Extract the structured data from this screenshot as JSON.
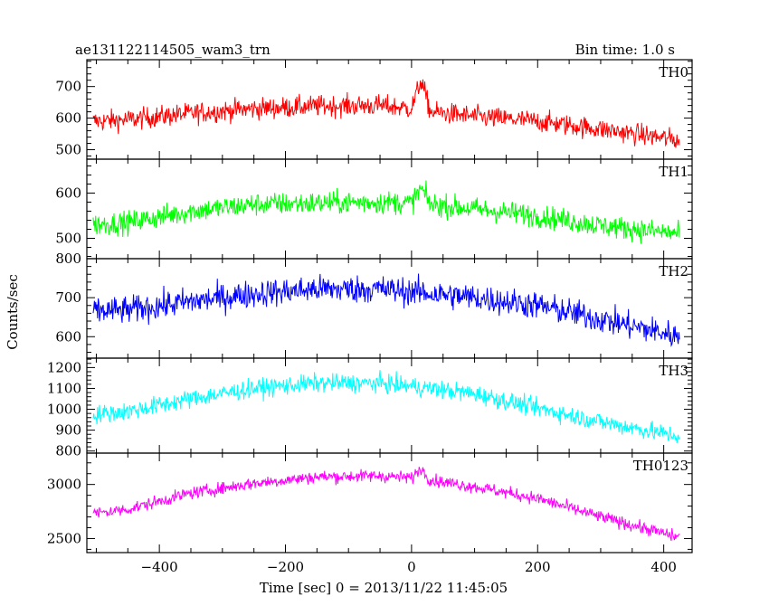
{
  "chart_data": {
    "type": "line",
    "title": "ae131122114505_wam3_trn",
    "bin_time_label": "Bin time: 1.0 s",
    "xlabel": "Time [sec] 0 = 2013/11/22 11:45:05",
    "ylabel": "Counts/sec",
    "xlim": [
      -515,
      445
    ],
    "x_ticks": [
      -400,
      -200,
      0,
      200,
      400
    ],
    "x_tick_labels": [
      "−400",
      "−200",
      "0",
      "200",
      "400"
    ],
    "x_data_range": [
      -505,
      425
    ],
    "series": [
      {
        "name": "TH0",
        "color": "#ff0000",
        "ylim": [
          470,
          785
        ],
        "y_ticks": [
          500,
          600,
          700
        ],
        "y_tick_labels": [
          "500",
          "600",
          "700"
        ],
        "trend": [
          [
            -505,
            590
          ],
          [
            -450,
            595
          ],
          [
            -350,
            615
          ],
          [
            -250,
            630
          ],
          [
            -150,
            638
          ],
          [
            -50,
            640
          ],
          [
            0,
            630
          ],
          [
            15,
            720
          ],
          [
            30,
            620
          ],
          [
            100,
            605
          ],
          [
            200,
            590
          ],
          [
            300,
            565
          ],
          [
            425,
            530
          ]
        ],
        "noise": 32
      },
      {
        "name": "TH1",
        "color": "#00ff00",
        "ylim": [
          455,
          675
        ],
        "y_ticks": [
          500,
          600
        ],
        "y_tick_labels": [
          "500",
          "600"
        ],
        "trend": [
          [
            -505,
            530
          ],
          [
            -450,
            535
          ],
          [
            -350,
            560
          ],
          [
            -250,
            575
          ],
          [
            -150,
            578
          ],
          [
            -50,
            580
          ],
          [
            0,
            578
          ],
          [
            15,
            610
          ],
          [
            30,
            575
          ],
          [
            100,
            565
          ],
          [
            200,
            550
          ],
          [
            300,
            528
          ],
          [
            425,
            510
          ]
        ],
        "noise": 24
      },
      {
        "name": "TH2",
        "color": "#0000ff",
        "ylim": [
          545,
          800
        ],
        "y_ticks": [
          600,
          700,
          800
        ],
        "y_tick_labels": [
          "600",
          "700",
          "800"
        ],
        "trend": [
          [
            -505,
            665
          ],
          [
            -450,
            668
          ],
          [
            -350,
            690
          ],
          [
            -250,
            710
          ],
          [
            -150,
            722
          ],
          [
            -50,
            722
          ],
          [
            0,
            715
          ],
          [
            100,
            700
          ],
          [
            200,
            680
          ],
          [
            300,
            645
          ],
          [
            425,
            600
          ]
        ],
        "noise": 34
      },
      {
        "name": "TH3",
        "color": "#00ffff",
        "ylim": [
          790,
          1245
        ],
        "y_ticks": [
          800,
          900,
          1000,
          1100,
          1200
        ],
        "y_tick_labels": [
          "800",
          "900",
          "1000",
          "1100",
          "1200"
        ],
        "trend": [
          [
            -505,
            975
          ],
          [
            -450,
            990
          ],
          [
            -350,
            1050
          ],
          [
            -250,
            1100
          ],
          [
            -150,
            1125
          ],
          [
            -50,
            1125
          ],
          [
            0,
            1110
          ],
          [
            100,
            1075
          ],
          [
            200,
            1005
          ],
          [
            300,
            940
          ],
          [
            425,
            870
          ]
        ],
        "noise": 42
      },
      {
        "name": "TH0123",
        "color": "#ff00ff",
        "ylim": [
          2370,
          3290
        ],
        "y_ticks": [
          2500,
          3000
        ],
        "y_tick_labels": [
          "2500",
          "3000"
        ],
        "trend": [
          [
            -505,
            2730
          ],
          [
            -450,
            2770
          ],
          [
            -350,
            2920
          ],
          [
            -250,
            3010
          ],
          [
            -150,
            3070
          ],
          [
            -50,
            3080
          ],
          [
            0,
            3060
          ],
          [
            15,
            3150
          ],
          [
            30,
            3040
          ],
          [
            100,
            2980
          ],
          [
            200,
            2870
          ],
          [
            300,
            2700
          ],
          [
            425,
            2510
          ]
        ],
        "noise": 55
      }
    ],
    "grid": false,
    "legend": "panel-labels-top-right"
  }
}
